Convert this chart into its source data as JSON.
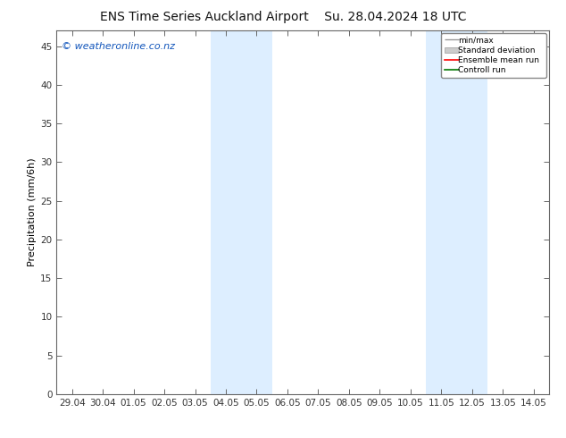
{
  "title_left": "ENS Time Series Auckland Airport",
  "title_right": "Su. 28.04.2024 18 UTC",
  "ylabel": "Precipitation (mm/6h)",
  "ylim": [
    0,
    47
  ],
  "yticks": [
    0,
    5,
    10,
    15,
    20,
    25,
    30,
    35,
    40,
    45
  ],
  "xtick_labels": [
    "29.04",
    "30.04",
    "01.05",
    "02.05",
    "03.05",
    "04.05",
    "05.05",
    "06.05",
    "07.05",
    "08.05",
    "09.05",
    "10.05",
    "11.05",
    "12.05",
    "13.05",
    "14.05"
  ],
  "shaded_bands": [
    {
      "xstart": 5,
      "xend": 7,
      "color": "#ddeeff"
    },
    {
      "xstart": 12,
      "xend": 14,
      "color": "#ddeeff"
    }
  ],
  "watermark_text": "© weatheronline.co.nz",
  "watermark_color": "#1155bb",
  "legend_items": [
    {
      "label": "min/max",
      "color": "#999999",
      "style": "minmax"
    },
    {
      "label": "Standard deviation",
      "color": "#cccccc",
      "style": "bar"
    },
    {
      "label": "Ensemble mean run",
      "color": "#ff0000",
      "style": "line"
    },
    {
      "label": "Controll run",
      "color": "#007700",
      "style": "line"
    }
  ],
  "bg_color": "#ffffff",
  "plot_bg_color": "#ffffff",
  "spine_color": "#666666",
  "tick_color": "#333333",
  "title_fontsize": 10,
  "label_fontsize": 8,
  "tick_fontsize": 7.5,
  "watermark_fontsize": 8
}
